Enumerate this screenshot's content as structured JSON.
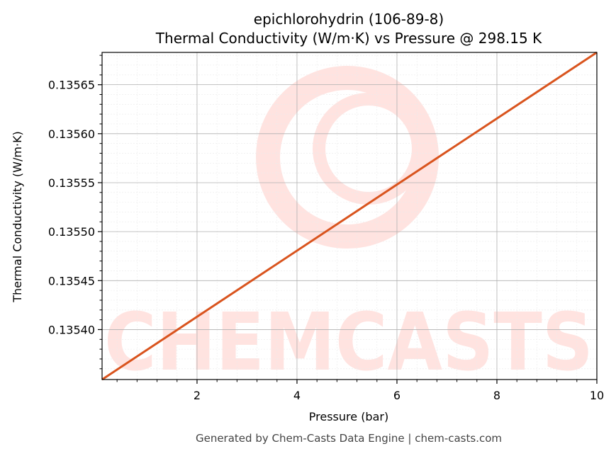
{
  "chart_data": {
    "type": "line",
    "title_lines": [
      "epichlorohydrin (106-89-8)",
      "Thermal Conductivity (W/m·K) vs Pressure @ 298.15 K"
    ],
    "xlabel": "Pressure (bar)",
    "ylabel": "Thermal Conductivity (W/m·K)",
    "xlim": [
      0.1,
      10
    ],
    "ylim": [
      0.135349,
      0.135683
    ],
    "x_ticks": [
      2,
      4,
      6,
      8,
      10
    ],
    "x_tick_labels": [
      "2",
      "4",
      "6",
      "8",
      "10"
    ],
    "y_ticks": [
      0.1354,
      0.13545,
      0.1355,
      0.13555,
      0.1356,
      0.13565
    ],
    "y_tick_labels": [
      "0.13540",
      "0.13545",
      "0.13550",
      "0.13555",
      "0.13560",
      "0.13565"
    ],
    "grid": true,
    "series": [
      {
        "color": "#d9541e",
        "x": [
          0.1,
          10
        ],
        "y": [
          0.135349,
          0.135683
        ]
      }
    ]
  },
  "watermark": {
    "text": "CHEMCASTS",
    "color": "#ffe3e0"
  },
  "footer": "Generated by Chem-Casts Data Engine | chem-casts.com"
}
